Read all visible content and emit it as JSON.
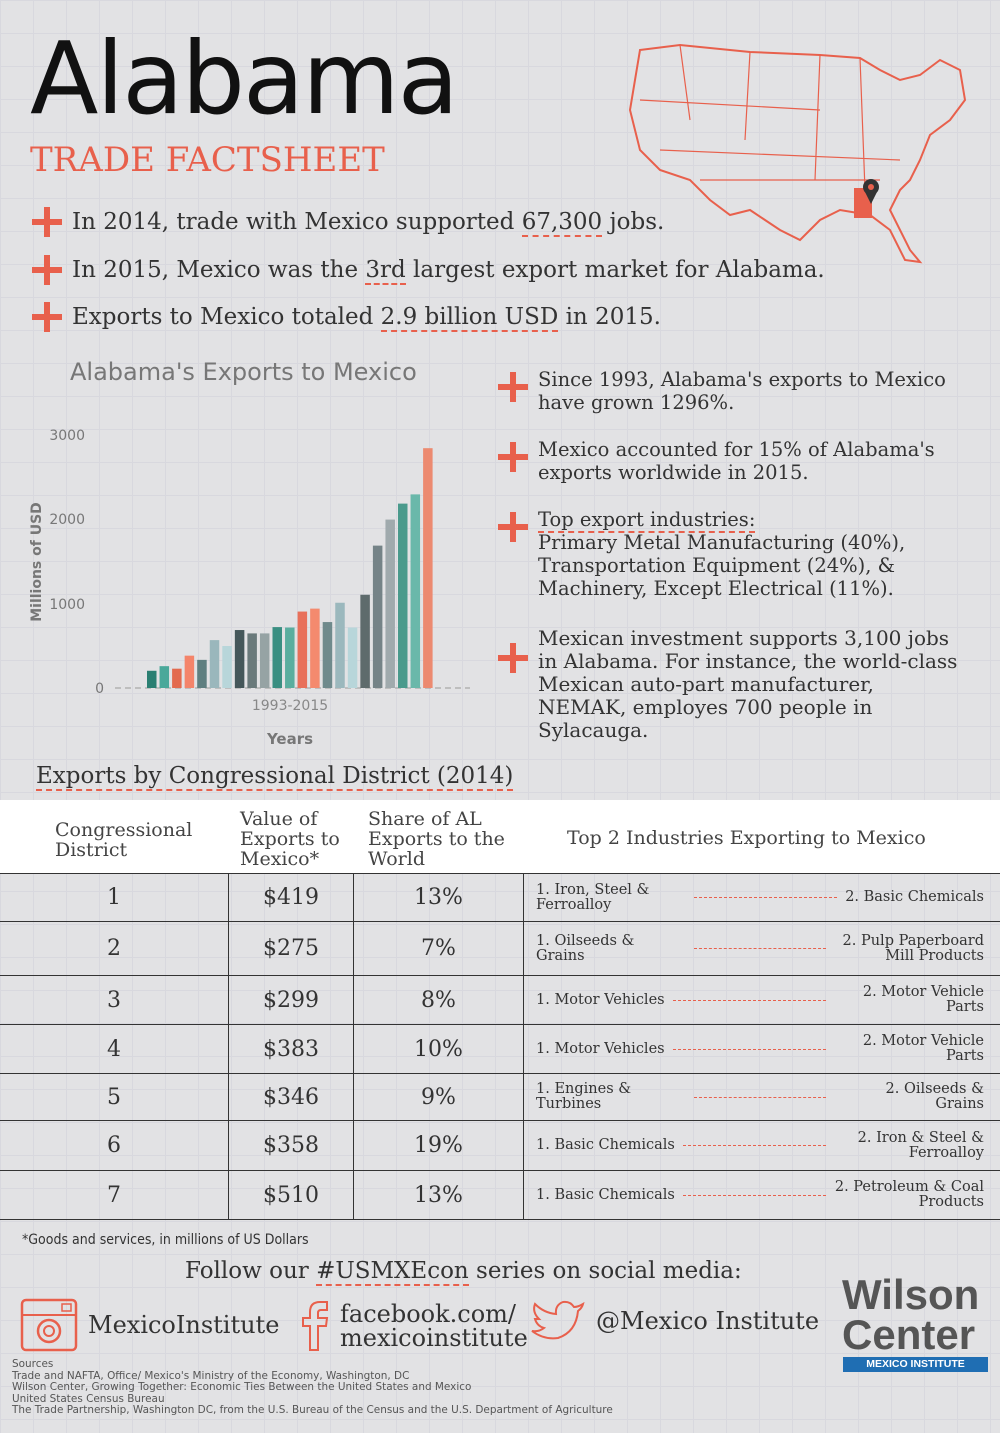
{
  "header": {
    "title": "Alabama",
    "subtitle": "TRADE FACTSHEET"
  },
  "facts": [
    {
      "pre": "In 2014, trade with Mexico supported ",
      "hl": "67,300",
      "post": " jobs."
    },
    {
      "pre": "In 2015, Mexico was the ",
      "hl": "3rd",
      "post": " largest export market for Alabama."
    },
    {
      "pre": "Exports to Mexico totaled ",
      "hl": "2.9 billion USD",
      "post": " in 2015."
    }
  ],
  "map": {
    "highlight_state": "Alabama",
    "icon": "map-pin-icon",
    "color": "#e8604c"
  },
  "side_facts": {
    "f1": "Since 1993, Alabama's exports to Mexico have grown 1296%.",
    "f2": "Mexico accounted for 15% of Alabama's exports worldwide in 2015.",
    "f3_head": "Top export industries:",
    "f3_body": "Primary Metal Manufacturing (40%), Transportation Equipment (24%), & Machinery, Except Electrical (11%).",
    "f4": "Mexican investment supports 3,100 jobs in Alabama. For instance, the world-class Mexican auto-part manufacturer, NEMAK, employes 700 people in Sylacauga."
  },
  "chart_data": {
    "type": "bar",
    "title": "Alabama's Exports to Mexico",
    "xlabel": "Years",
    "x_tick_label": "1993-2015",
    "ylabel": "Millions of USD",
    "ylim": [
      0,
      3000
    ],
    "yticks": [
      0,
      1000,
      2000,
      3000
    ],
    "grid": true,
    "categories": [
      "1993",
      "1994",
      "1995",
      "1996",
      "1997",
      "1998",
      "1999",
      "2000",
      "2001",
      "2002",
      "2003",
      "2004",
      "2005",
      "2006",
      "2007",
      "2008",
      "2009",
      "2010",
      "2011",
      "2012",
      "2013",
      "2014",
      "2015"
    ],
    "values": [
      205,
      260,
      230,
      385,
      335,
      570,
      500,
      690,
      650,
      650,
      725,
      720,
      910,
      945,
      785,
      1015,
      720,
      1110,
      1695,
      2005,
      2195,
      2305,
      2855
    ],
    "colors": [
      "#2a7f72",
      "#4aa89a",
      "#e36a4e",
      "#f4846a",
      "#5f7f80",
      "#9ab7bc",
      "#b8d6da",
      "#45575a",
      "#6a7a7b",
      "#96a3a4",
      "#3a8f82",
      "#5aae9f",
      "#e8705a",
      "#f48a6e",
      "#6f8a8c",
      "#9bb8bd",
      "#b8d6da",
      "#5e6b6c",
      "#758387",
      "#a0aaad",
      "#4a9a8c",
      "#6ab8aa",
      "#ec8a70"
    ]
  },
  "districts": {
    "title": "Exports by Congressional District (2014)",
    "headers": [
      "Congressional District",
      "Value of Exports to Mexico*",
      "Share of AL Exports to the World",
      "Top 2 Industries Exporting to Mexico"
    ],
    "rows": [
      {
        "d": "1",
        "v": "$419",
        "s": "13%",
        "i1": "1. Iron, Steel & Ferroalloy",
        "i2": "2. Basic Chemicals"
      },
      {
        "d": "2",
        "v": "$275",
        "s": "7%",
        "i1": "1. Oilseeds & Grains",
        "i2": "2. Pulp Paperboard Mill Products"
      },
      {
        "d": "3",
        "v": "$299",
        "s": "8%",
        "i1": "1. Motor Vehicles",
        "i2": "2. Motor Vehicle Parts"
      },
      {
        "d": "4",
        "v": "$383",
        "s": "10%",
        "i1": "1. Motor Vehicles",
        "i2": "2. Motor Vehicle Parts"
      },
      {
        "d": "5",
        "v": "$346",
        "s": "9%",
        "i1": "1. Engines & Turbines",
        "i2": "2. Oilseeds & Grains"
      },
      {
        "d": "6",
        "v": "$358",
        "s": "19%",
        "i1": "1. Basic Chemicals",
        "i2": "2. Iron & Steel & Ferroalloy"
      },
      {
        "d": "7",
        "v": "$510",
        "s": "13%",
        "i1": "1. Basic Chemicals",
        "i2": "2. Petroleum & Coal Products"
      }
    ],
    "footnote": "*Goods and services, in millions of US Dollars"
  },
  "footer": {
    "follow_pre": "Follow our ",
    "follow_tag": "#USMXEcon",
    "follow_post": " series on social media:",
    "instagram": "MexicoInstitute",
    "facebook1": "facebook.com/",
    "facebook2": "mexicoinstitute",
    "twitter": "@Mexico Institute",
    "sources": [
      "Sources",
      "Trade and NAFTA, Office/ Mexico's Ministry of the Economy, Washington, DC",
      "Wilson Center, Growing Together: Economic Ties Between the United States and Mexico",
      "United States Census Bureau",
      "The Trade Partnership, Washington DC, from the U.S. Bureau of the Census and the U.S. Department of Agriculture"
    ],
    "logo1": "Wilson",
    "logo2": "Center",
    "logo3": "MEXICO INSTITUTE"
  }
}
